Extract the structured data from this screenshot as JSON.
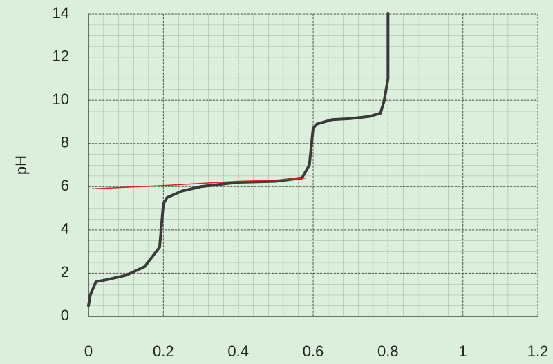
{
  "chart_data": {
    "type": "line",
    "y_label": "pH",
    "xlim": [
      0,
      1.2
    ],
    "ylim": [
      0,
      14
    ],
    "xticks": [
      0,
      0.2,
      0.4,
      0.6,
      0.8,
      1,
      1.2
    ],
    "yticks": [
      0,
      2,
      4,
      6,
      8,
      10,
      12,
      14
    ],
    "grid": true,
    "series": [
      {
        "color": "#3a3a3a",
        "x": [
          0,
          0.005,
          0.02,
          0.05,
          0.1,
          0.15,
          0.19,
          0.2,
          0.21,
          0.25,
          0.3,
          0.4,
          0.5,
          0.57,
          0.59,
          0.6,
          0.61,
          0.65,
          0.7,
          0.75,
          0.78,
          0.79,
          0.8,
          0.8
        ],
        "values": [
          0.5,
          1.0,
          1.6,
          1.7,
          1.9,
          2.3,
          3.2,
          5.2,
          5.5,
          5.8,
          6.0,
          6.2,
          6.25,
          6.4,
          7.0,
          8.7,
          8.9,
          9.1,
          9.15,
          9.25,
          9.4,
          10,
          11,
          14
        ]
      },
      {
        "color": "#e02020",
        "x": [
          0.01,
          0.2,
          0.3,
          0.4,
          0.5,
          0.58
        ],
        "values": [
          5.9,
          6.05,
          6.15,
          6.25,
          6.3,
          6.4
        ]
      }
    ]
  }
}
